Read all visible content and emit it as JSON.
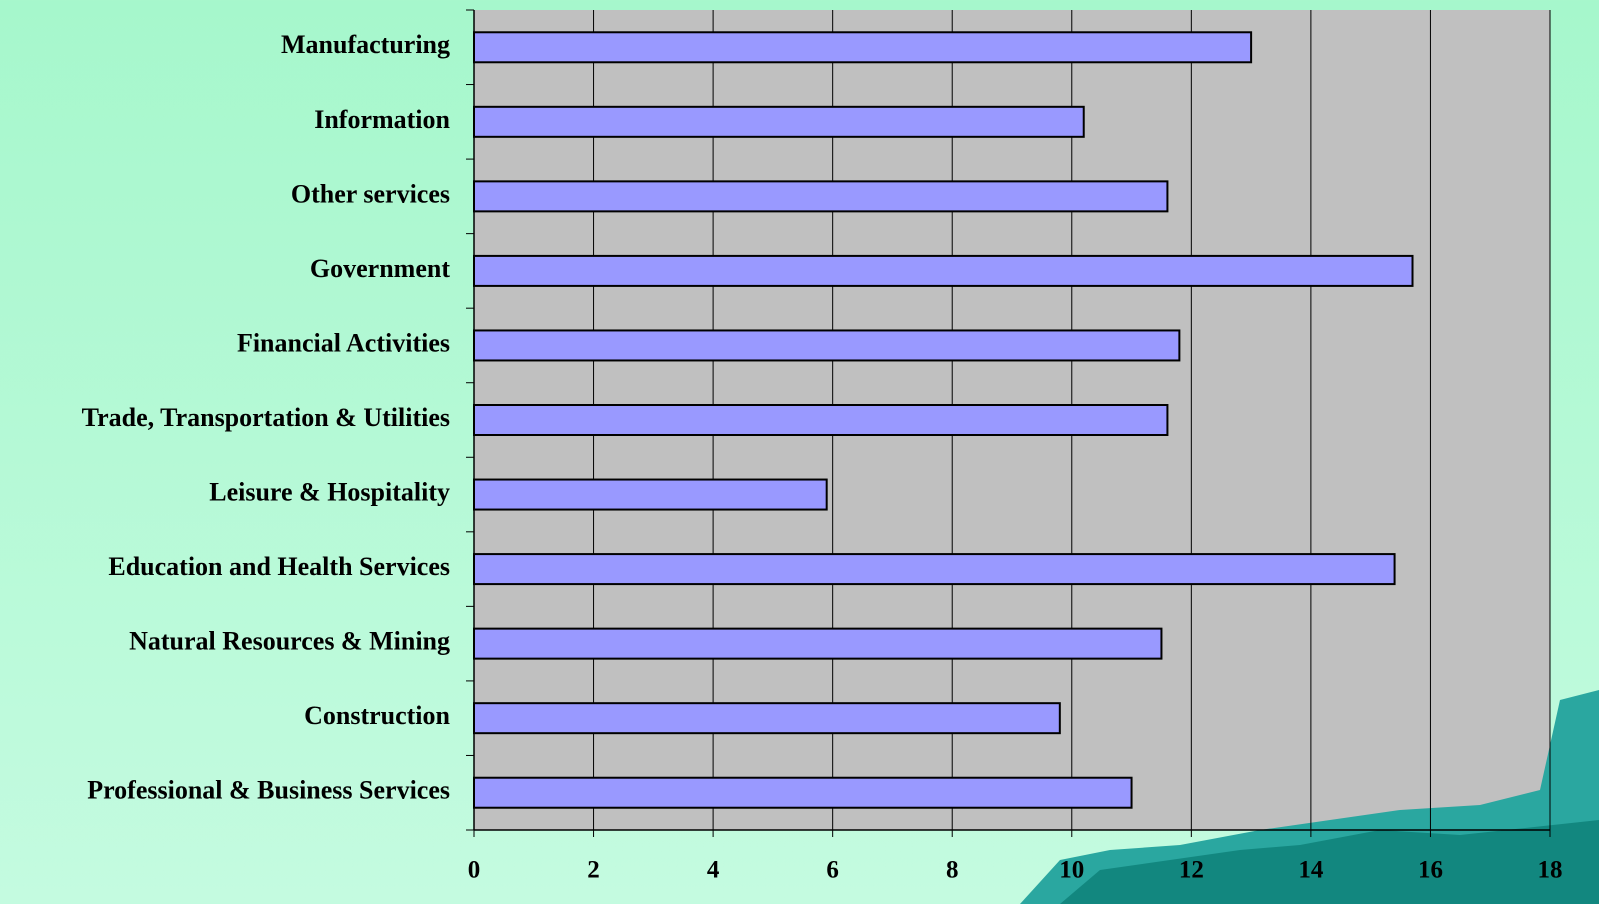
{
  "chart_data": {
    "type": "bar",
    "orientation": "horizontal",
    "categories": [
      "Manufacturing",
      "Information",
      "Other services",
      "Government",
      "Financial Activities",
      "Trade, Transportation & Utilities",
      "Leisure & Hospitality",
      "Education and Health Services",
      "Natural Resources & Mining",
      "Construction",
      "Professional & Business Services"
    ],
    "values": [
      13.0,
      10.2,
      11.6,
      15.7,
      11.8,
      11.6,
      5.9,
      15.4,
      11.5,
      9.8,
      11.0
    ],
    "color": "#9999ff",
    "xlim": [
      0,
      18
    ],
    "xticks": [
      0,
      2,
      4,
      6,
      8,
      10,
      12,
      14,
      16,
      18
    ],
    "grid": true
  }
}
